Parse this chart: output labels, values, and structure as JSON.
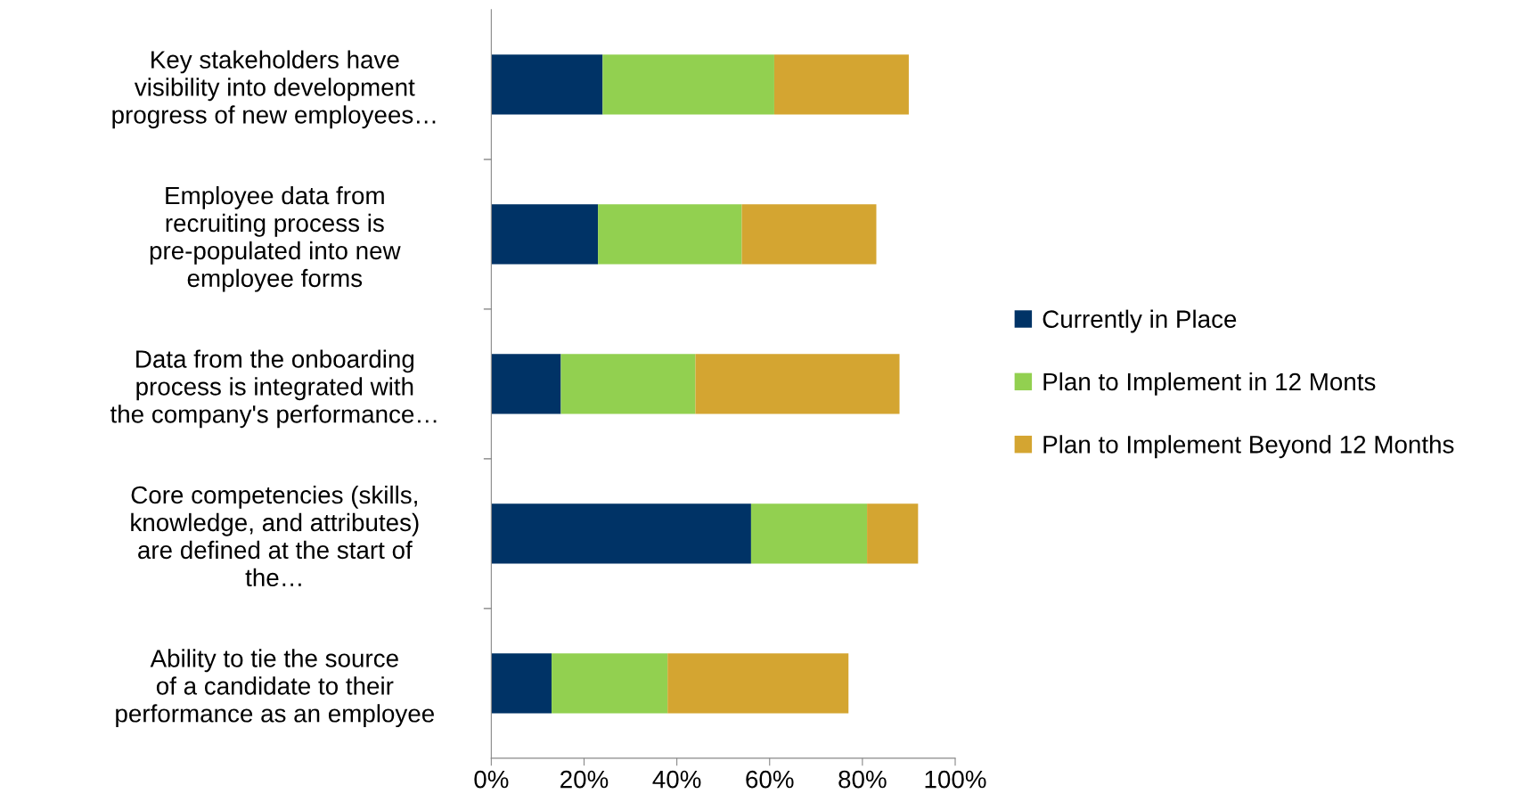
{
  "chart_data": {
    "type": "bar",
    "orientation": "horizontal",
    "stacked": true,
    "categories": [
      "Key stakeholders have visibility into development progress of new employees…",
      "Employee data from recruiting process is pre-populated into new employee forms",
      "Data from the onboarding process is integrated with the company's performance…",
      "Core competencies (skills, knowledge, and attributes) are defined at the start of the…",
      "Ability to tie the source of a candidate to their performance as an employee"
    ],
    "series": [
      {
        "name": "Currently in Place",
        "color": "#003366",
        "values": [
          24,
          23,
          15,
          56,
          13
        ]
      },
      {
        "name": "Plan to Implement in 12 Monts",
        "color": "#92d050",
        "values": [
          37,
          31,
          29,
          25,
          25
        ]
      },
      {
        "name": "Plan to Implement Beyond 12 Months",
        "color": "#d4a531",
        "values": [
          29,
          29,
          44,
          11,
          39
        ]
      }
    ],
    "xlim": [
      0,
      100
    ],
    "xticks": [
      {
        "value": 0,
        "label": "0%"
      },
      {
        "value": 20,
        "label": "20%"
      },
      {
        "value": 40,
        "label": "40%"
      },
      {
        "value": 60,
        "label": "60%"
      },
      {
        "value": 80,
        "label": "80%"
      },
      {
        "value": 100,
        "label": "100%"
      }
    ],
    "grid": false,
    "legend": "right"
  }
}
